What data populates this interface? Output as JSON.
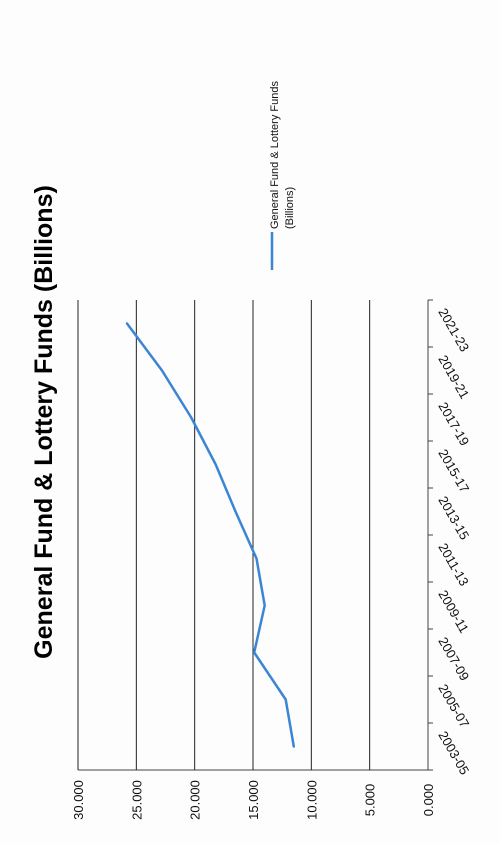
{
  "chart_data": {
    "type": "line",
    "title": "General Fund & Lottery Funds  (Billions)",
    "xlabel": "",
    "ylabel": "",
    "categories": [
      "2003-05",
      "2005-07",
      "2007-09",
      "2009-11",
      "2011-13",
      "2013-15",
      "2015-17",
      "2017-19",
      "2019-21",
      "2021-23"
    ],
    "series": [
      {
        "name": "General Fund & Lottery Funds (Billions)",
        "values": [
          11.5,
          12.2,
          14.9,
          14.0,
          14.7,
          16.5,
          18.2,
          20.3,
          22.8,
          25.8
        ],
        "color": "#3a86d4"
      }
    ],
    "y_ticks": [
      "0.000",
      "5.000",
      "10.000",
      "15.000",
      "20.000",
      "25.000",
      "30.000"
    ],
    "ylim": [
      0,
      30
    ],
    "grid": true,
    "legend": "right",
    "orientation": "rotated-90-clockwise"
  }
}
